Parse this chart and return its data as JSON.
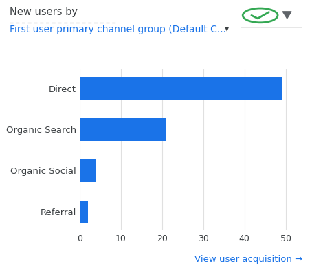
{
  "title_line1": "New users by",
  "title_line2": "First user primary channel group (Default C...",
  "categories": [
    "Direct",
    "Organic Search",
    "Organic Social",
    "Referral"
  ],
  "values": [
    49,
    21,
    4,
    2
  ],
  "bar_color": "#1a73e8",
  "xlim": [
    0,
    53
  ],
  "xticks": [
    0,
    10,
    20,
    30,
    40,
    50
  ],
  "grid_color": "#e0e0e0",
  "label_color": "#3c4043",
  "title1_color": "#3c4043",
  "title2_color": "#1a73e8",
  "footer_text": "View user acquisition →",
  "footer_color": "#1a73e8",
  "bg_color": "#ffffff"
}
